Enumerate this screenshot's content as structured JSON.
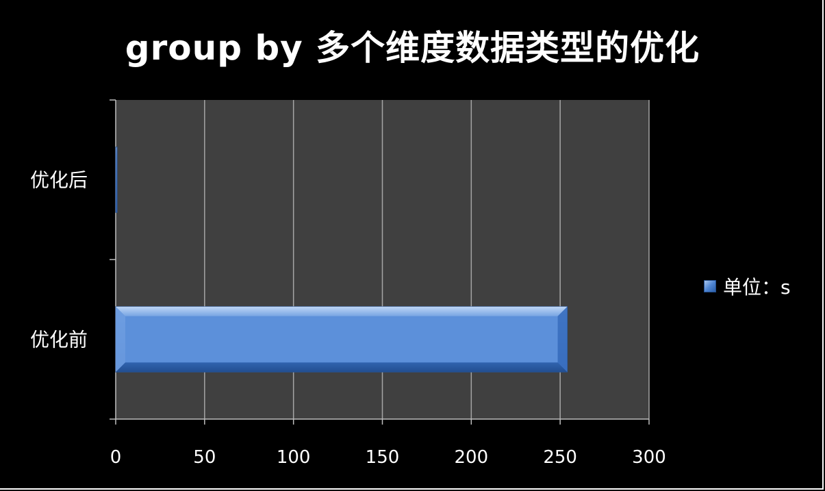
{
  "chart_data": {
    "type": "bar",
    "orientation": "horizontal",
    "title": "group by 多个维度数据类型的优化",
    "categories": [
      "优化后",
      "优化前"
    ],
    "series": [
      {
        "name": "单位：s",
        "values": [
          0.5,
          254
        ]
      }
    ],
    "xlim": [
      0,
      300
    ],
    "xticks": [
      0,
      50,
      100,
      150,
      200,
      250,
      300
    ],
    "xtick_labels": [
      "0",
      "50",
      "100",
      "150",
      "200",
      "250",
      "300"
    ],
    "grid": true,
    "legend_position": "right",
    "colors": {
      "background": "#000000",
      "plot_area": "#404040",
      "grid": "#a6a6a6",
      "bar": "#4f86d4"
    }
  }
}
